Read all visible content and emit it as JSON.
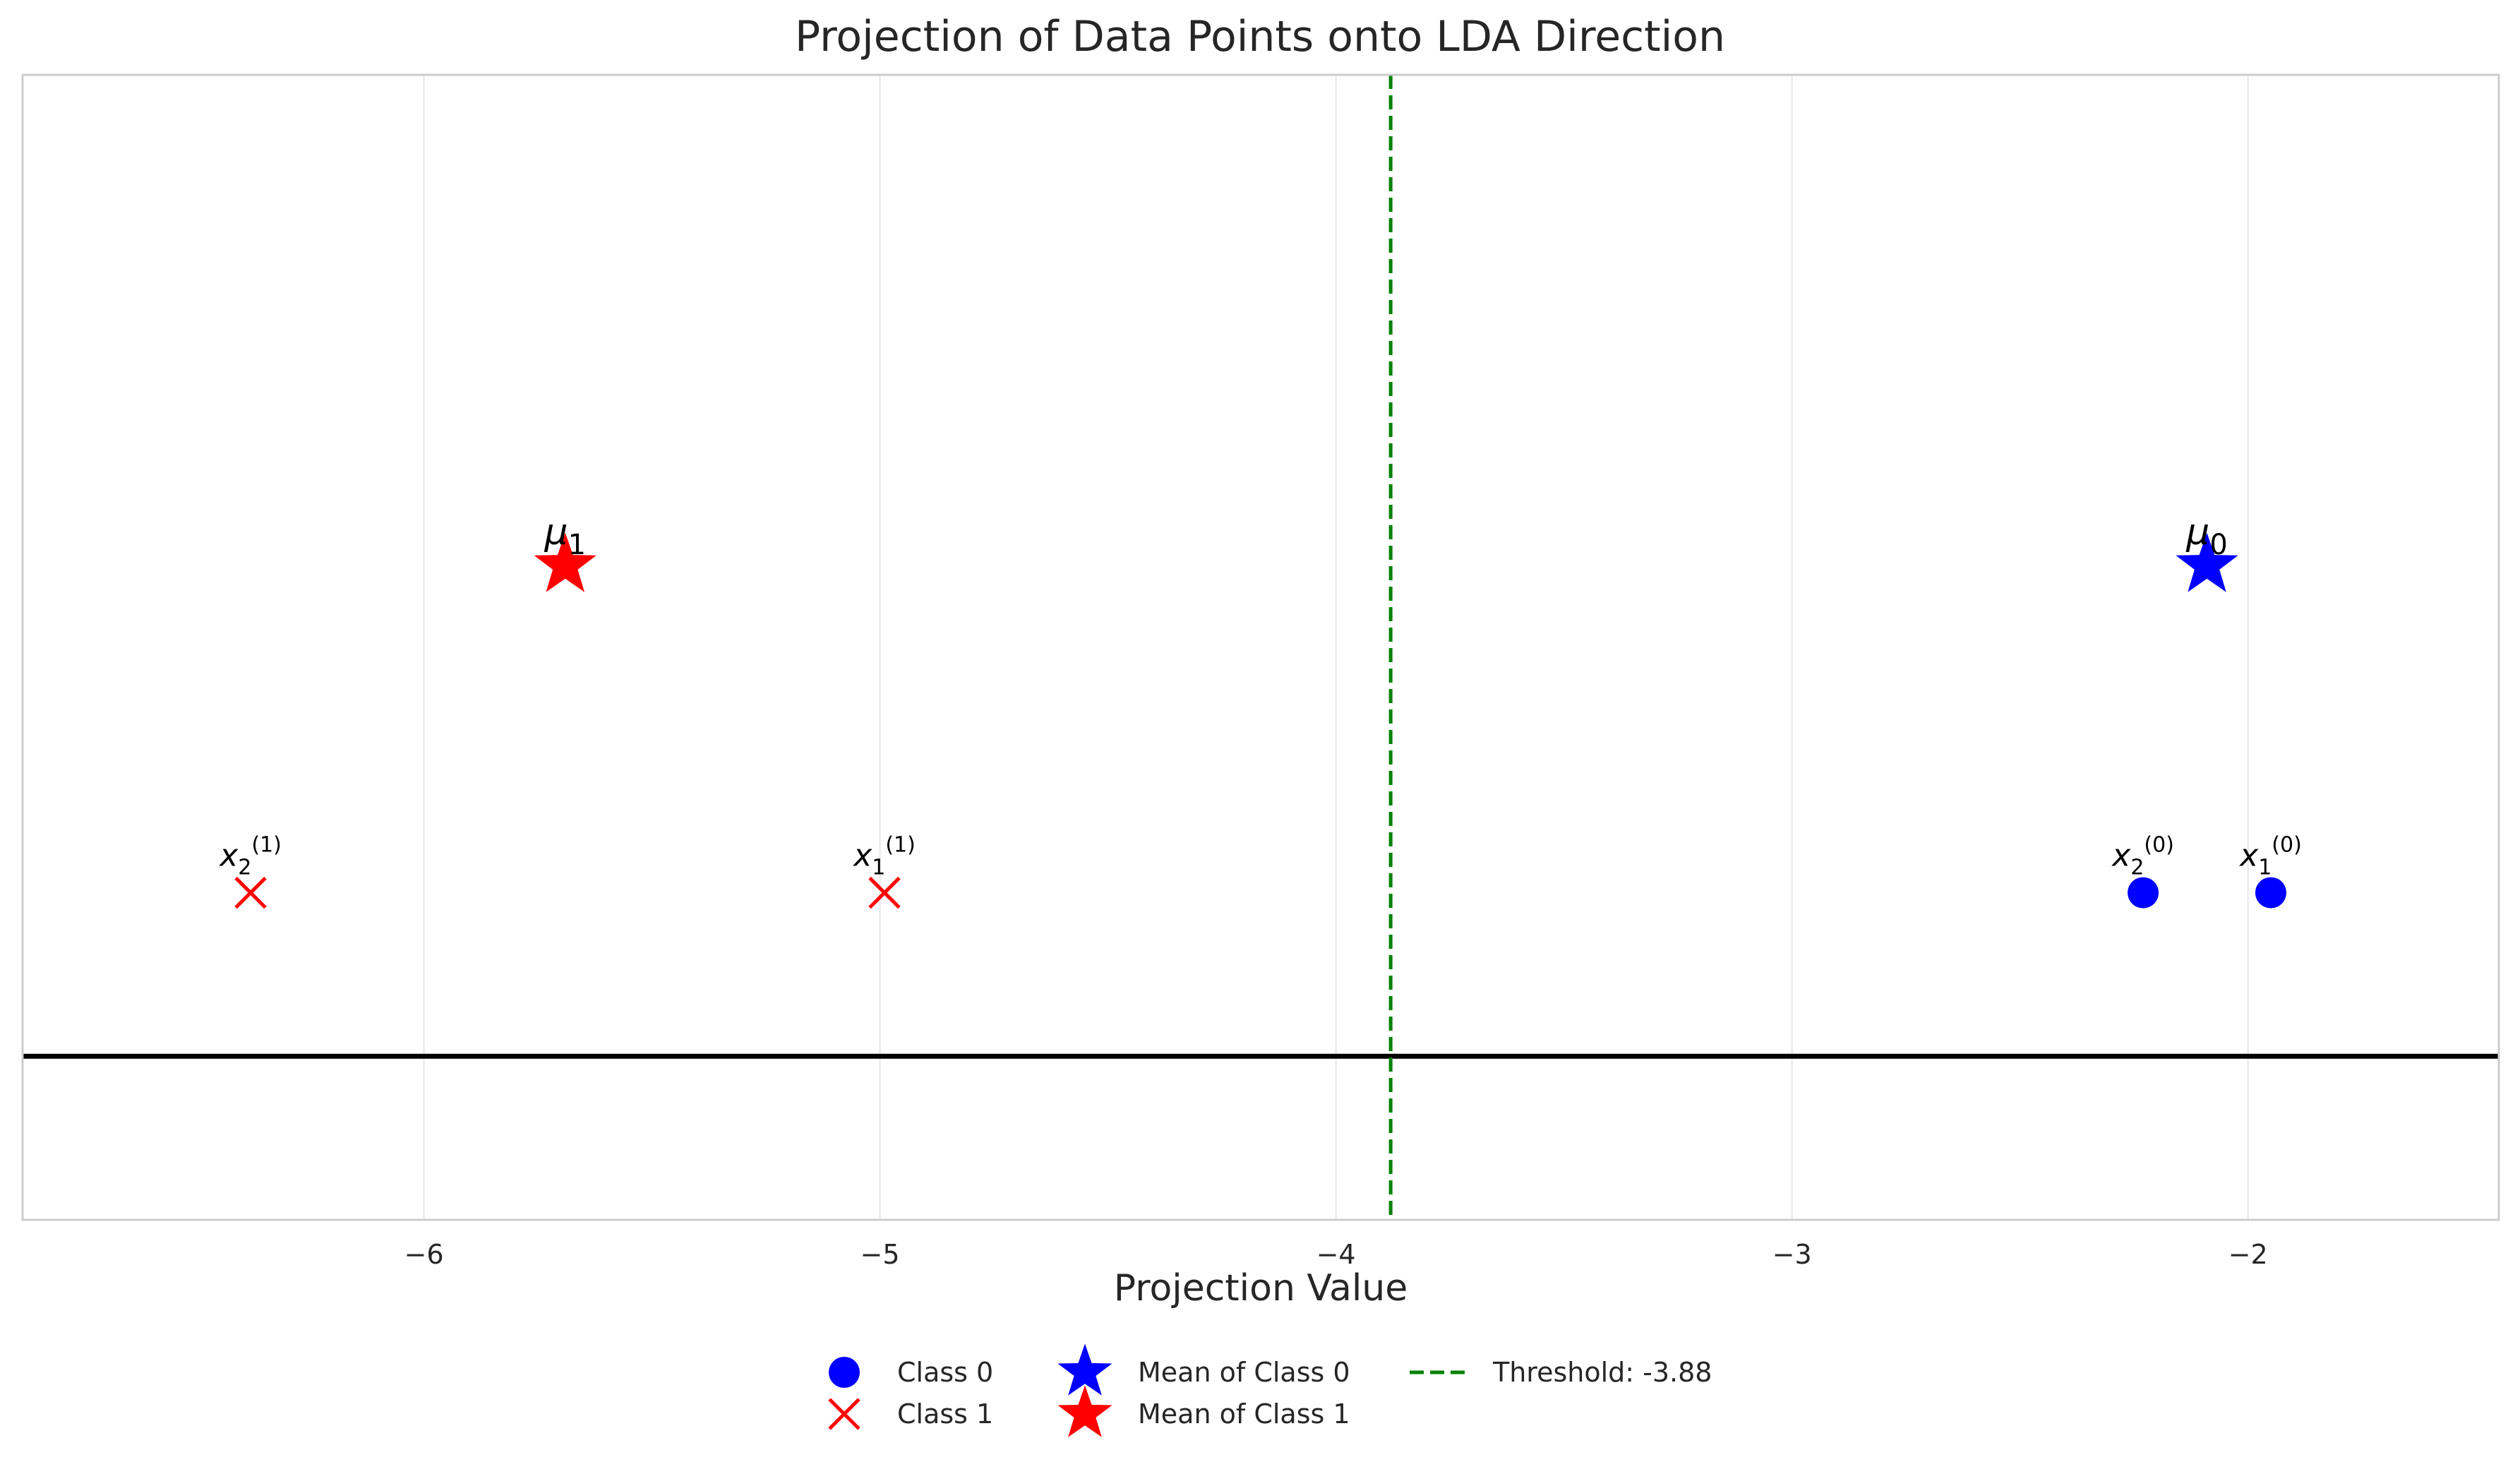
{
  "chart_data": {
    "type": "scatter",
    "title": "Projection of Data Points onto LDA Direction",
    "xlabel": "Projection Value",
    "ylabel": "",
    "xlim": [
      -6.88,
      -1.45
    ],
    "ylim": [
      -0.5,
      3.0
    ],
    "x_ticks": [
      -6,
      -5,
      -4,
      -3,
      -2
    ],
    "x_tick_labels": [
      "−6",
      "−5",
      "−4",
      "−3",
      "−2"
    ],
    "grid": true,
    "legend_position": "bottom-center",
    "baseline_y": 0,
    "series": [
      {
        "name": "Class 0",
        "marker": "circle",
        "color": "#0000ff",
        "points": [
          {
            "x": -1.95,
            "y": 0.5,
            "label_base": "x",
            "label_sub": "1",
            "label_sup": "(0)"
          },
          {
            "x": -2.23,
            "y": 0.5,
            "label_base": "x",
            "label_sub": "2",
            "label_sup": "(0)"
          }
        ]
      },
      {
        "name": "Class 1",
        "marker": "x",
        "color": "#ff0000",
        "points": [
          {
            "x": -4.99,
            "y": 0.5,
            "label_base": "x",
            "label_sub": "1",
            "label_sup": "(1)"
          },
          {
            "x": -6.38,
            "y": 0.5,
            "label_base": "x",
            "label_sub": "2",
            "label_sup": "(1)"
          }
        ]
      },
      {
        "name": "Mean of Class 0",
        "marker": "star",
        "color": "#0000ff",
        "points": [
          {
            "x": -2.09,
            "y": 1.5,
            "label_base": "μ",
            "label_sub": "0",
            "label_sup": ""
          }
        ]
      },
      {
        "name": "Mean of Class 1",
        "marker": "star",
        "color": "#ff0000",
        "points": [
          {
            "x": -5.69,
            "y": 1.5,
            "label_base": "μ",
            "label_sub": "1",
            "label_sup": ""
          }
        ]
      }
    ],
    "threshold": {
      "name": "Threshold: -3.88",
      "x": -3.88,
      "color": "#008000",
      "style": "dashed"
    }
  }
}
